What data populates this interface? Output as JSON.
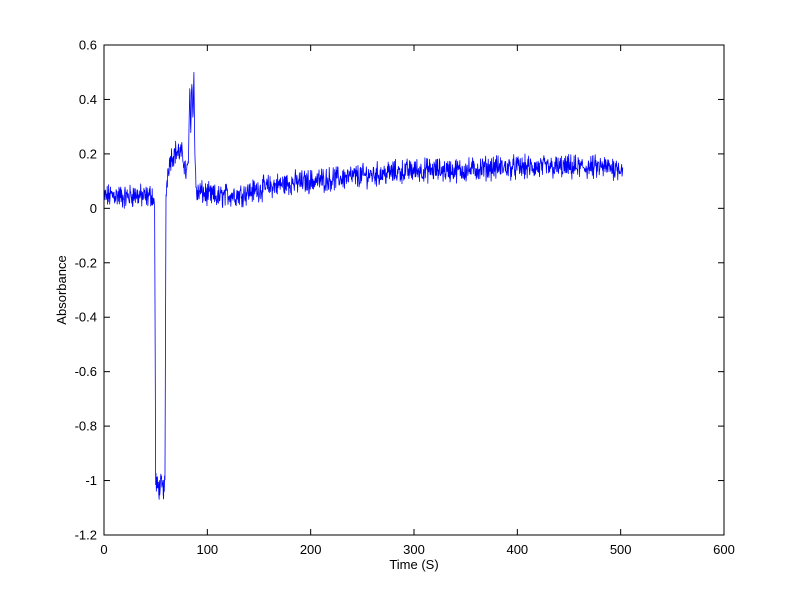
{
  "chart_data": {
    "type": "line",
    "title": "",
    "xlabel": "Time (S)",
    "ylabel": "Absorbance",
    "xlim": [
      0,
      600
    ],
    "ylim": [
      -1.2,
      0.6
    ],
    "xticks": [
      0,
      100,
      200,
      300,
      400,
      500,
      600
    ],
    "yticks": [
      -1.2,
      -1,
      -0.8,
      -0.6,
      -0.4,
      -0.2,
      0,
      0.2,
      0.4,
      0.6
    ],
    "xtick_labels": [
      "0",
      "100",
      "200",
      "300",
      "400",
      "500",
      "600"
    ],
    "ytick_labels": [
      "-1.2",
      "-1",
      "-0.8",
      "-0.6",
      "-0.4",
      "-0.2",
      "0",
      "0.2",
      "0.4",
      "0.6"
    ],
    "grid": false,
    "box": true,
    "series": [
      {
        "color": "#0000ff",
        "x": [
          0,
          10,
          20,
          30,
          40,
          47,
          49,
          50,
          52,
          55,
          58,
          59,
          60,
          62,
          65,
          70,
          75,
          77,
          80,
          82,
          83,
          84,
          85,
          86,
          87,
          88,
          89,
          90,
          93,
          100,
          110,
          120,
          130,
          140,
          150,
          160,
          175,
          200,
          225,
          250,
          275,
          300,
          325,
          350,
          375,
          400,
          425,
          450,
          475,
          500,
          502
        ],
        "y": [
          0.04,
          0.05,
          0.04,
          0.05,
          0.04,
          0.05,
          0.0,
          -1.0,
          -1.03,
          -1.02,
          -1.03,
          -1.0,
          0.05,
          0.15,
          0.19,
          0.21,
          0.2,
          0.18,
          0.12,
          0.2,
          0.45,
          0.3,
          0.47,
          0.35,
          0.48,
          0.2,
          0.08,
          0.05,
          0.06,
          0.05,
          0.04,
          0.05,
          0.05,
          0.06,
          0.07,
          0.08,
          0.09,
          0.1,
          0.11,
          0.12,
          0.13,
          0.14,
          0.14,
          0.14,
          0.15,
          0.15,
          0.15,
          0.15,
          0.15,
          0.15,
          0.15
        ],
        "noise": 0.035
      }
    ]
  }
}
